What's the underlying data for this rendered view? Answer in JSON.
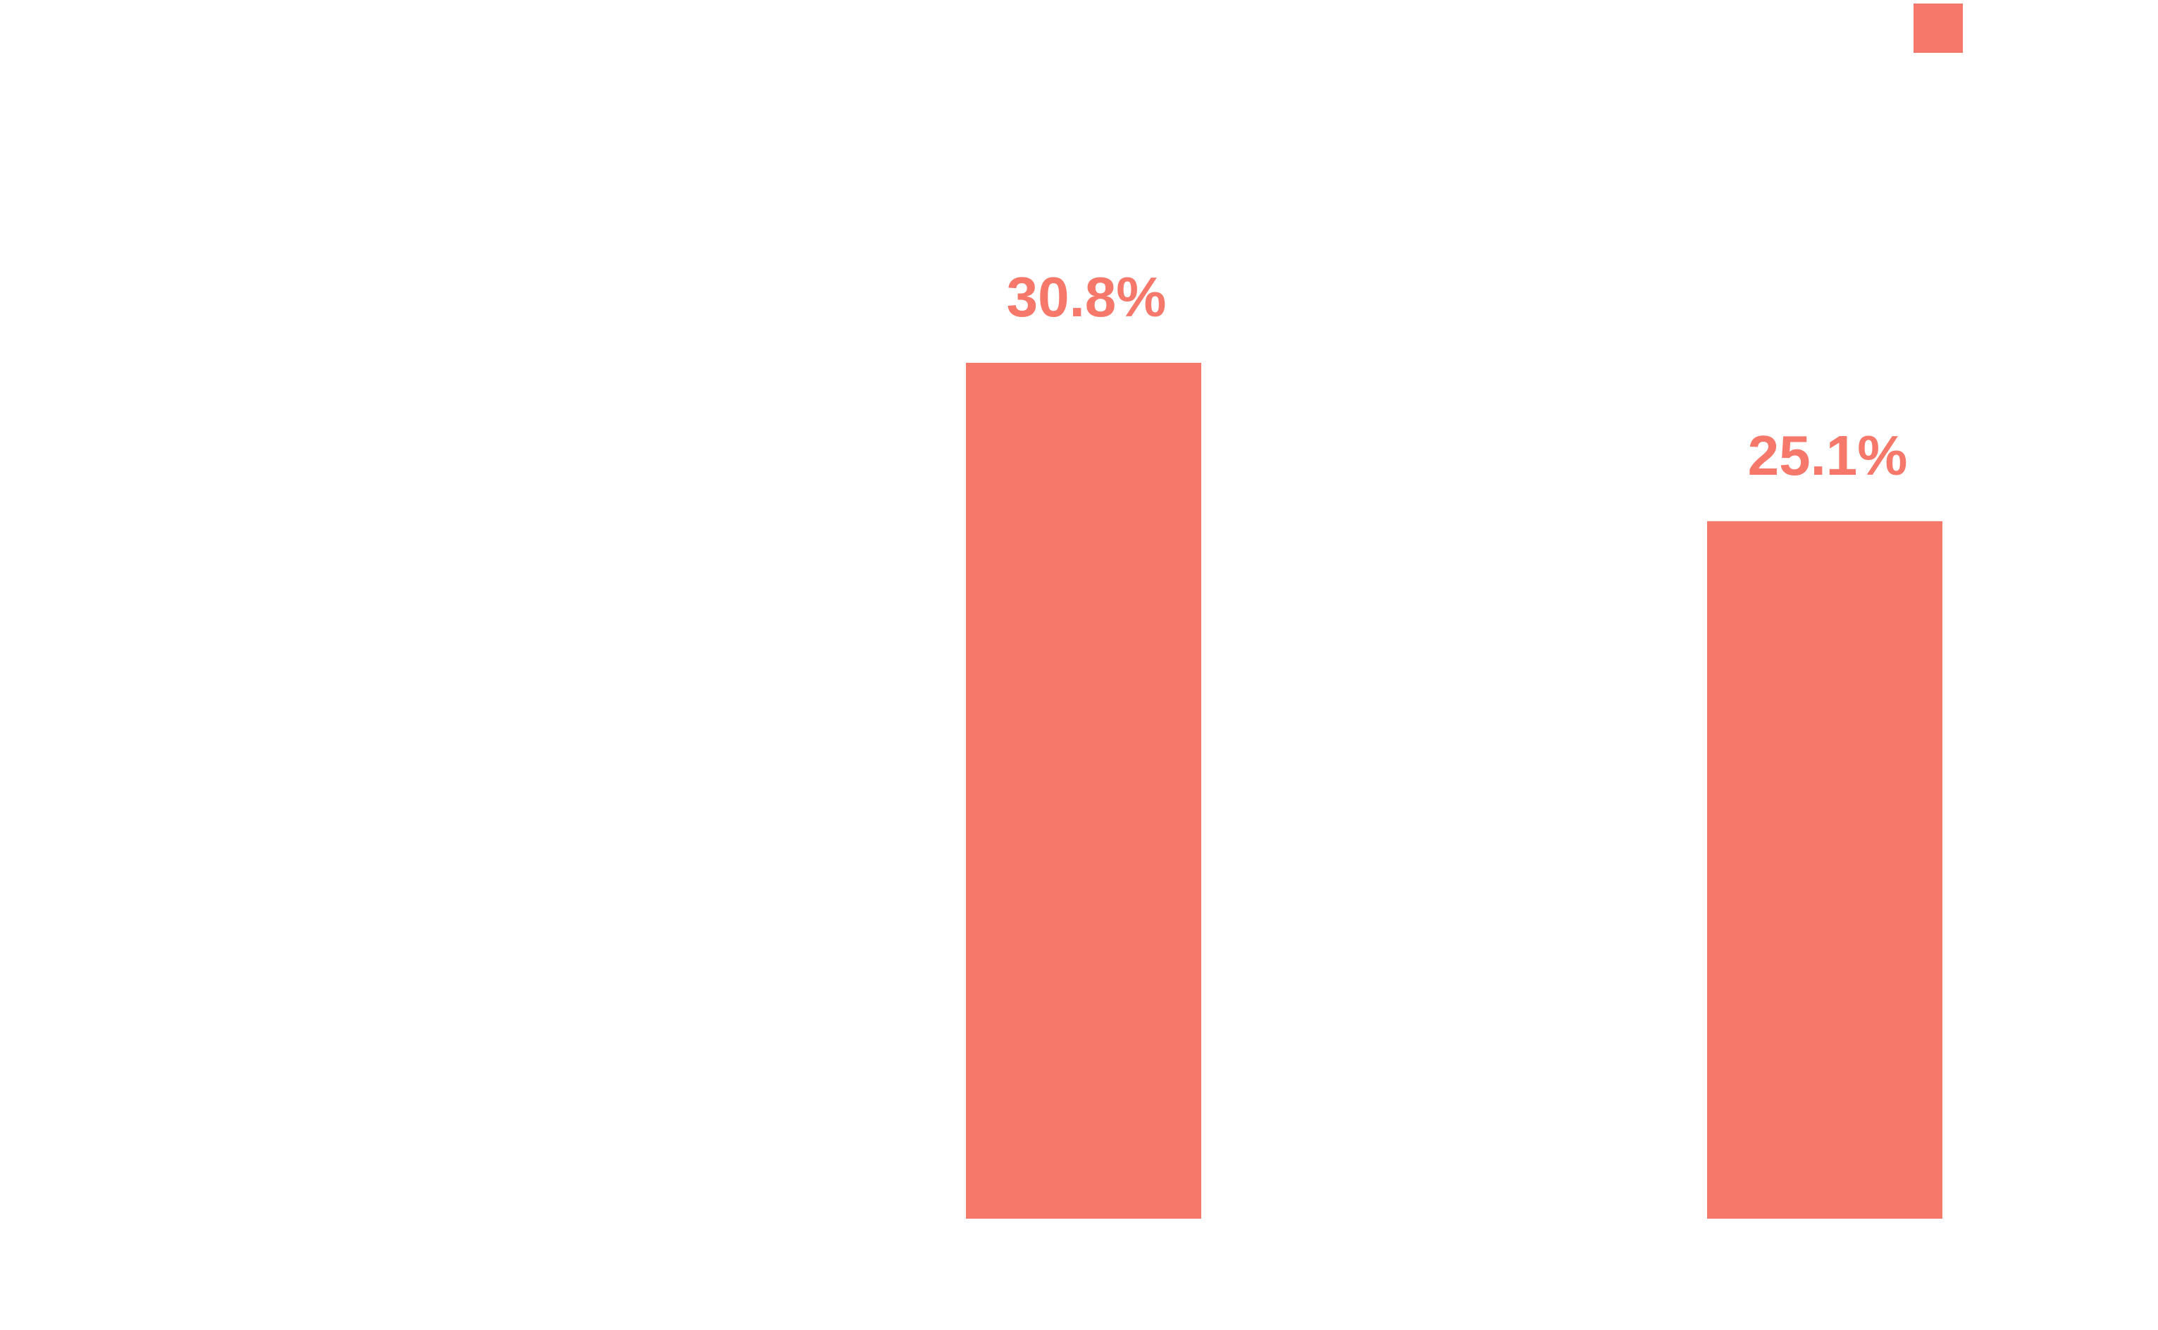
{
  "chart_data": {
    "type": "bar",
    "title": "",
    "xlabel": "",
    "ylabel": "",
    "categories": [
      "",
      "",
      ""
    ],
    "series": [
      {
        "values": [
          null,
          30.8,
          25.1
        ],
        "data_labels": [
          "",
          "30.8%",
          "25.1%"
        ]
      }
    ],
    "ylim": [
      0,
      35
    ],
    "grid": false,
    "legend": {
      "position": "top-right"
    },
    "colors": {
      "bar": "#F5786A",
      "label": "#F5786A",
      "background": "#FFFFFF"
    }
  }
}
